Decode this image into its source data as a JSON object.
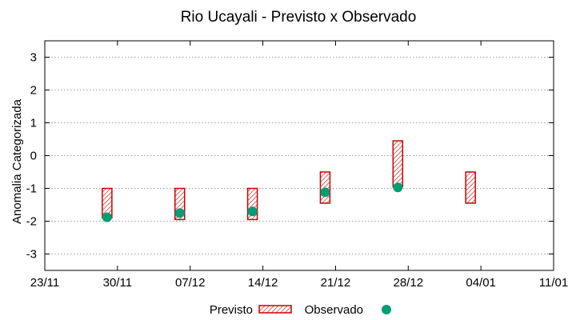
{
  "chart_data": {
    "type": "interval",
    "title": "Rio Ucayali - Previsto x Observado",
    "xlabel": "",
    "ylabel": "Anomalia Categorizada",
    "ylim": [
      -3.5,
      3.5
    ],
    "yticks": [
      -3,
      -2,
      -1,
      0,
      1,
      2,
      3
    ],
    "x_ticks": [
      {
        "day": 0,
        "label": "23/11"
      },
      {
        "day": 7,
        "label": "30/11"
      },
      {
        "day": 14,
        "label": "07/12"
      },
      {
        "day": 21,
        "label": "14/12"
      },
      {
        "day": 28,
        "label": "21/12"
      },
      {
        "day": 35,
        "label": "28/12"
      },
      {
        "day": 42,
        "label": "04/01"
      },
      {
        "day": 49,
        "label": "11/01"
      }
    ],
    "xlim": [
      0,
      49
    ],
    "grid": true,
    "series": [
      {
        "name": "Previsto",
        "kind": "range",
        "color": "#cc0000",
        "points": [
          {
            "day": 6,
            "low": -1.9,
            "high": -1.0
          },
          {
            "day": 13,
            "low": -1.95,
            "high": -1.0
          },
          {
            "day": 20,
            "low": -1.95,
            "high": -1.0
          },
          {
            "day": 27,
            "low": -1.45,
            "high": -0.5
          },
          {
            "day": 34,
            "low": -0.95,
            "high": 0.45
          },
          {
            "day": 41,
            "low": -1.45,
            "high": -0.5
          }
        ]
      },
      {
        "name": "Observado",
        "kind": "point",
        "color": "#009e73",
        "points": [
          {
            "day": 6,
            "value": -1.88
          },
          {
            "day": 13,
            "value": -1.75
          },
          {
            "day": 20,
            "value": -1.7
          },
          {
            "day": 27,
            "value": -1.12
          },
          {
            "day": 34,
            "value": -0.97
          }
        ]
      }
    ],
    "legend_position": "bottom-center"
  }
}
